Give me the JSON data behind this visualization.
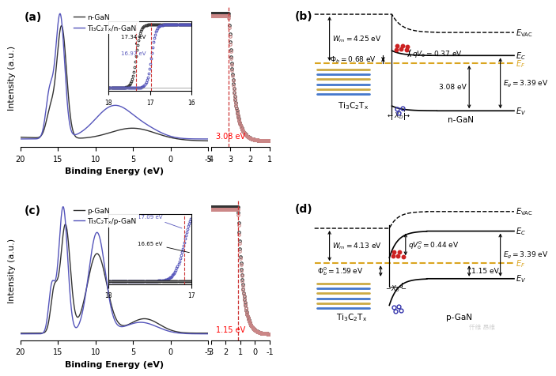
{
  "panel_a": {
    "label": "(a)",
    "legend1": "n-GaN",
    "legend2": "Ti₃C₂Tₓ/n-GaN",
    "xlabel": "Binding Energy (eV)",
    "ylabel": "Intensity (a.u.)",
    "inset_ann1": "17.34 eV",
    "inset_ann2": "16.97 eV",
    "right_ann": "3.08 eV",
    "color_black": "#333333",
    "color_blue": "#5555bb"
  },
  "panel_b": {
    "label": "(b)"
  },
  "panel_c": {
    "label": "(c)",
    "legend1": "p-GaN",
    "legend2": "Ti₃C₂Tₓ/p-GaN",
    "xlabel": "Binding Energy (eV)",
    "ylabel": "Intensity (a.u.)",
    "inset_ann1": "17.09 eV",
    "inset_ann2": "16.65 eV",
    "right_ann": "1.15 eV",
    "color_black": "#333333",
    "color_blue": "#5555bb"
  },
  "panel_d": {
    "label": "(d)"
  },
  "bg_color": "#ffffff",
  "arrow_color": "#333333",
  "ef_color": "#DAA520",
  "red_dot": "#cc2222",
  "blue_open": "#3333aa",
  "mxene_blue": "#4477cc",
  "mxene_gold": "#ccaa44"
}
